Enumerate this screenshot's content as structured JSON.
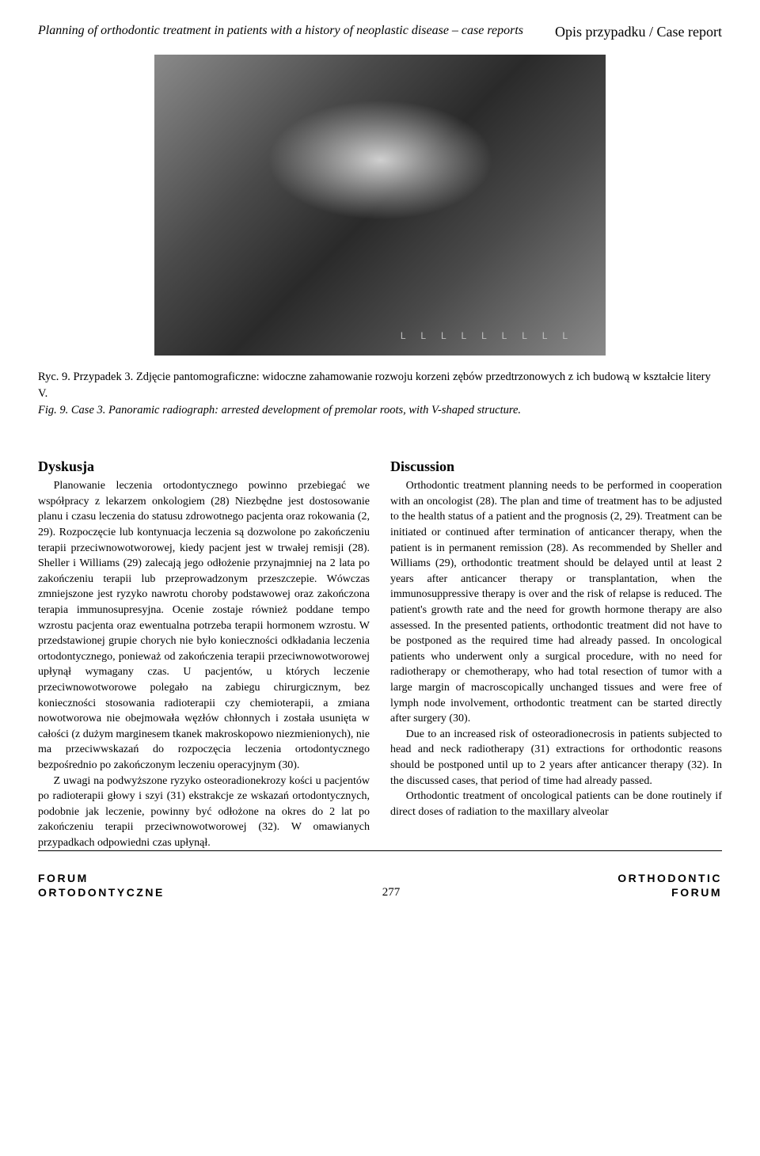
{
  "header": {
    "subtitle": "Planning of orthodontic treatment in patients with a history of neoplastic disease – case reports",
    "category": "Opis przypadku / Case report"
  },
  "figure": {
    "caption_pl": "Ryc. 9. Przypadek 3. Zdjęcie pantomograficzne: widoczne zahamowanie rozwoju korzeni zębów przedtrzonowych z ich budową w kształcie litery V.",
    "caption_en": "Fig. 9. Case 3. Panoramic radiograph: arrested development of premolar roots, with V-shaped structure."
  },
  "leftcol": {
    "heading": "Dyskusja",
    "p1": "Planowanie leczenia ortodontycznego powinno przebiegać we współpracy z lekarzem onkologiem (28) Niezbędne jest dostosowanie planu i czasu leczenia do statusu zdrowotnego pacjenta oraz rokowania (2, 29). Rozpoczęcie lub kontynuacja leczenia są dozwolone po zakończeniu terapii przeciwnowotworowej, kiedy pacjent jest w trwałej remisji (28). Sheller i Williams (29) zalecają jego odłożenie przynajmniej na 2 lata po zakończeniu terapii lub przeprowadzonym przeszczepie. Wówczas zmniejszone jest ryzyko nawrotu choroby podstawowej oraz zakończona terapia immunosupresyjna. Ocenie zostaje również poddane tempo wzrostu pacjenta oraz ewentualna potrzeba terapii hormonem wzrostu. W przedstawionej grupie chorych nie było konieczności odkładania leczenia ortodontycznego, ponieważ od zakończenia terapii przeciwnowotworowej upłynął wymagany czas. U pacjentów, u których leczenie przeciwnowotworowe polegało na zabiegu chirurgicznym, bez konieczności stosowania radioterapii czy chemioterapii, a zmiana nowotworowa nie obejmowała węzłów chłonnych i została usunięta w całości (z dużym marginesem tkanek makroskopowo niezmienionych), nie ma przeciwwskazań do rozpoczęcia leczenia ortodontycznego bezpośrednio po zakończonym leczeniu operacyjnym (30).",
    "p2": "Z uwagi na podwyższone ryzyko osteoradionekrozy kości u pacjentów po radioterapii głowy i szyi (31) ekstrakcje ze wskazań ortodontycznych, podobnie jak leczenie, powinny być odłożone na okres do 2 lat po zakończeniu terapii przeciwnowotworowej (32). W omawianych przypadkach odpowiedni czas upłynął."
  },
  "rightcol": {
    "heading": "Discussion",
    "p1": "Orthodontic treatment planning needs to be performed in cooperation with an oncologist (28). The plan and time of treatment has to be adjusted to the health status of a patient and the prognosis (2, 29). Treatment can be initiated or continued after termination of anticancer therapy, when the patient is in permanent remission (28). As recommended by Sheller and Williams (29), orthodontic treatment should be delayed until at least 2 years after anticancer therapy or transplantation, when the immunosuppressive therapy is over and the risk of relapse is reduced. The patient's growth rate and the need for growth hormone therapy are also assessed. In the presented patients, orthodontic treatment did not have to be postponed as the required time had already passed. In oncological patients who underwent only a surgical procedure, with no need for radiotherapy or chemotherapy, who had total resection of tumor with a large margin of macroscopically unchanged tissues and were free of lymph node involvement, orthodontic treatment can be started directly after surgery (30).",
    "p2": "Due to an increased risk of osteoradionecrosis in patients subjected to head and neck radiotherapy (31) extractions for orthodontic reasons should be postponed until up to 2 years after anticancer therapy (32). In the discussed cases, that period of time had already passed.",
    "p3": "Orthodontic treatment of oncological patients can be done routinely if direct doses of radiation to the maxillary alveolar"
  },
  "footer": {
    "left_top": "FORUM",
    "left_bottom": "ORTODONTYCZNE",
    "right_top": "ORTHODONTIC",
    "right_bottom": "FORUM",
    "page": "277"
  }
}
